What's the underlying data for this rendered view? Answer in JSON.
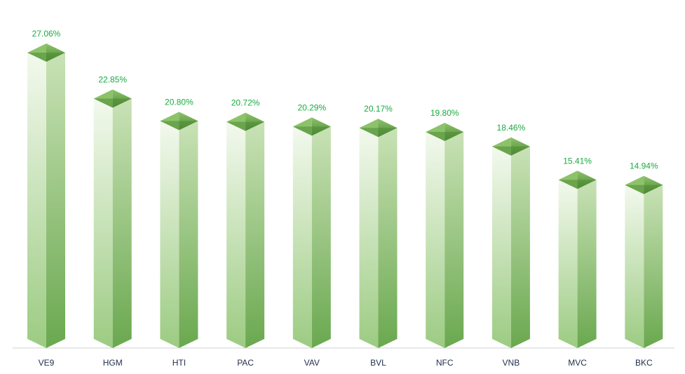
{
  "chart_data": {
    "type": "bar",
    "style": "3d-prism",
    "categories": [
      "VE9",
      "HGM",
      "HTI",
      "PAC",
      "VAV",
      "BVL",
      "NFC",
      "VNB",
      "MVC",
      "BKC"
    ],
    "values": [
      27.06,
      22.85,
      20.8,
      20.72,
      20.29,
      20.17,
      19.8,
      18.46,
      15.41,
      14.94
    ],
    "data_labels": [
      "27.06%",
      "22.85%",
      "20.80%",
      "20.72%",
      "20.29%",
      "20.17%",
      "19.80%",
      "18.46%",
      "15.41%",
      "14.94%"
    ],
    "ylim": [
      0,
      27.06
    ],
    "grid": false,
    "legend": "none",
    "colors": {
      "bar_front_top": "#f3f9ee",
      "bar_front_bottom": "#9ccb82",
      "bar_side_top": "#c9e2b6",
      "bar_side_bottom": "#6aa84f",
      "bar_cap_light": "#8cc36a",
      "bar_cap_dark": "#4e8a34",
      "label_text": "#1aab40",
      "category_text": "#1f2d4a",
      "axis_line": "#d0d0d0"
    }
  }
}
